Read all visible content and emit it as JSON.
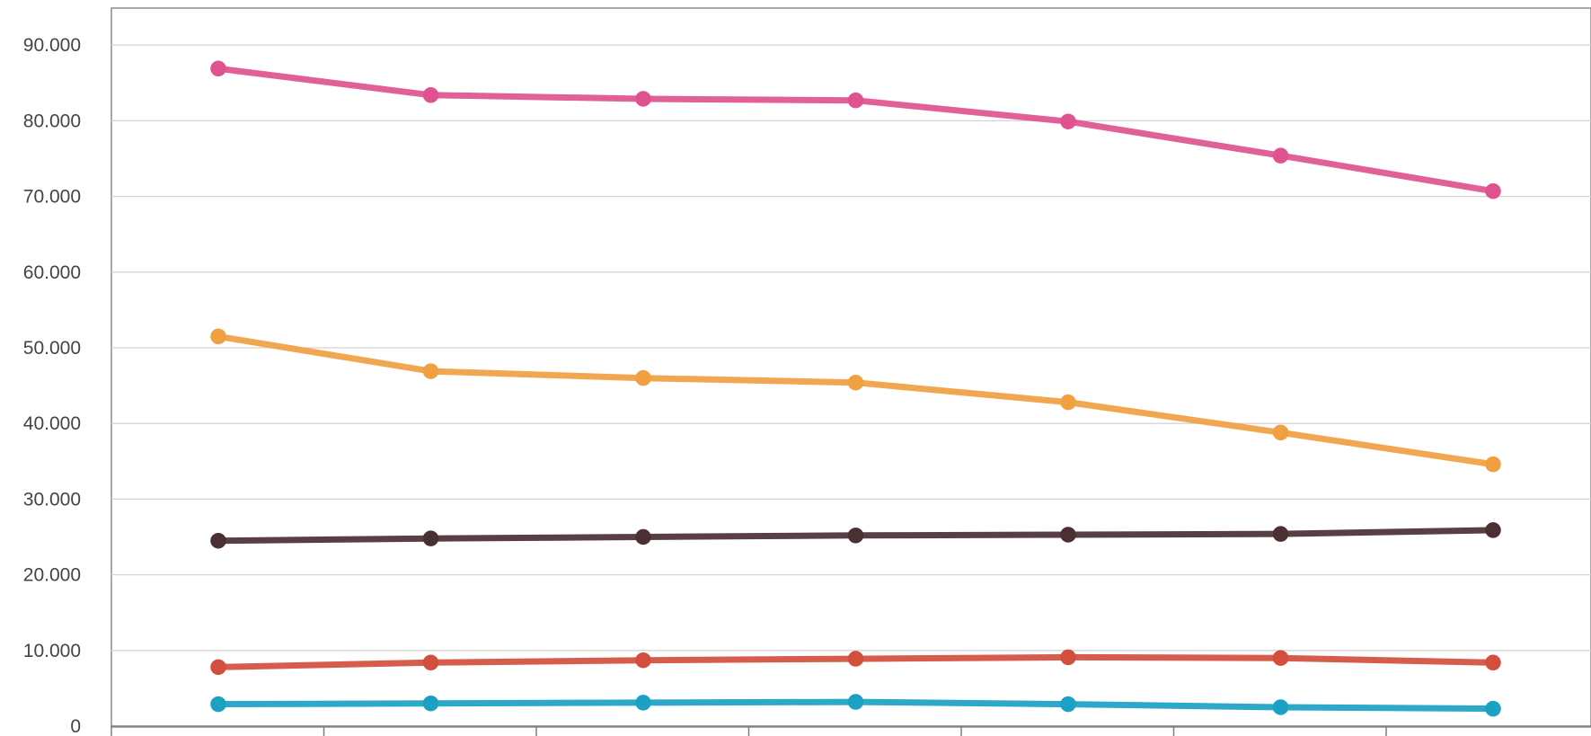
{
  "chart_data": {
    "type": "line",
    "title": "",
    "xlabel": "",
    "ylabel": "",
    "ylim": [
      0,
      95000
    ],
    "grid": true,
    "legend": "none",
    "x_points": 7,
    "y_ticks": [
      0,
      10000,
      20000,
      30000,
      40000,
      50000,
      60000,
      70000,
      80000,
      90000
    ],
    "y_tick_labels": [
      "0",
      "10.000",
      "20.000",
      "30.000",
      "40.000",
      "50.000",
      "60.000",
      "70.000",
      "80.000",
      "90.000"
    ],
    "series": [
      {
        "color": "#e0528f",
        "values": [
          86900,
          83400,
          82900,
          82700,
          79900,
          75400,
          70700
        ]
      },
      {
        "color": "#f0a040",
        "values": [
          51500,
          46900,
          46000,
          45400,
          42800,
          38800,
          34600
        ]
      },
      {
        "color": "#4a2f33",
        "values": [
          24500,
          24800,
          25000,
          25200,
          25300,
          25400,
          25900
        ]
      },
      {
        "color": "#d24f3d",
        "values": [
          7800,
          8400,
          8700,
          8900,
          9100,
          9000,
          8400
        ]
      },
      {
        "color": "#1ba1c4",
        "values": [
          2900,
          3000,
          3100,
          3200,
          2900,
          2500,
          2300
        ]
      }
    ]
  }
}
